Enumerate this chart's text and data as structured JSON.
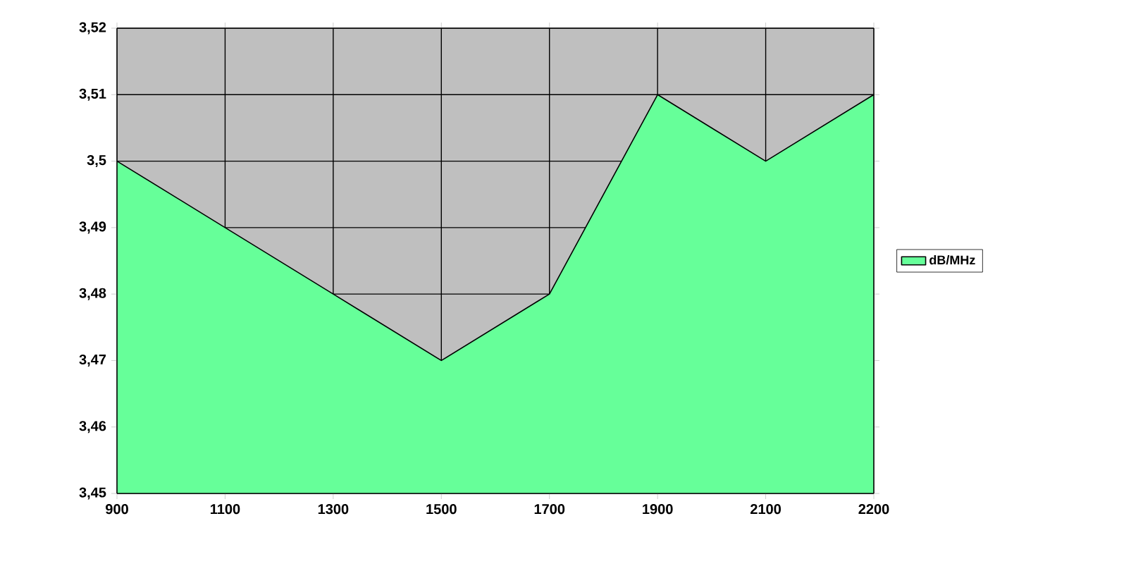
{
  "chart_data": {
    "type": "area",
    "categories": [
      "900",
      "1100",
      "1300",
      "1500",
      "1700",
      "1900",
      "2100",
      "2200"
    ],
    "series": [
      {
        "name": "dB/MHz",
        "color": "#66ff99",
        "values": [
          3.5,
          3.49,
          3.48,
          3.47,
          3.48,
          3.51,
          3.5,
          3.51
        ]
      }
    ],
    "ylim": [
      3.45,
      3.52
    ],
    "yticks": [
      {
        "value": 3.45,
        "label": "3,45"
      },
      {
        "value": 3.46,
        "label": "3,46"
      },
      {
        "value": 3.47,
        "label": "3,47"
      },
      {
        "value": 3.48,
        "label": "3,48"
      },
      {
        "value": 3.49,
        "label": "3,49"
      },
      {
        "value": 3.5,
        "label": "3,5"
      },
      {
        "value": 3.51,
        "label": "3,51"
      },
      {
        "value": 3.52,
        "label": "3,52"
      }
    ],
    "grid": true,
    "legend": "right"
  }
}
